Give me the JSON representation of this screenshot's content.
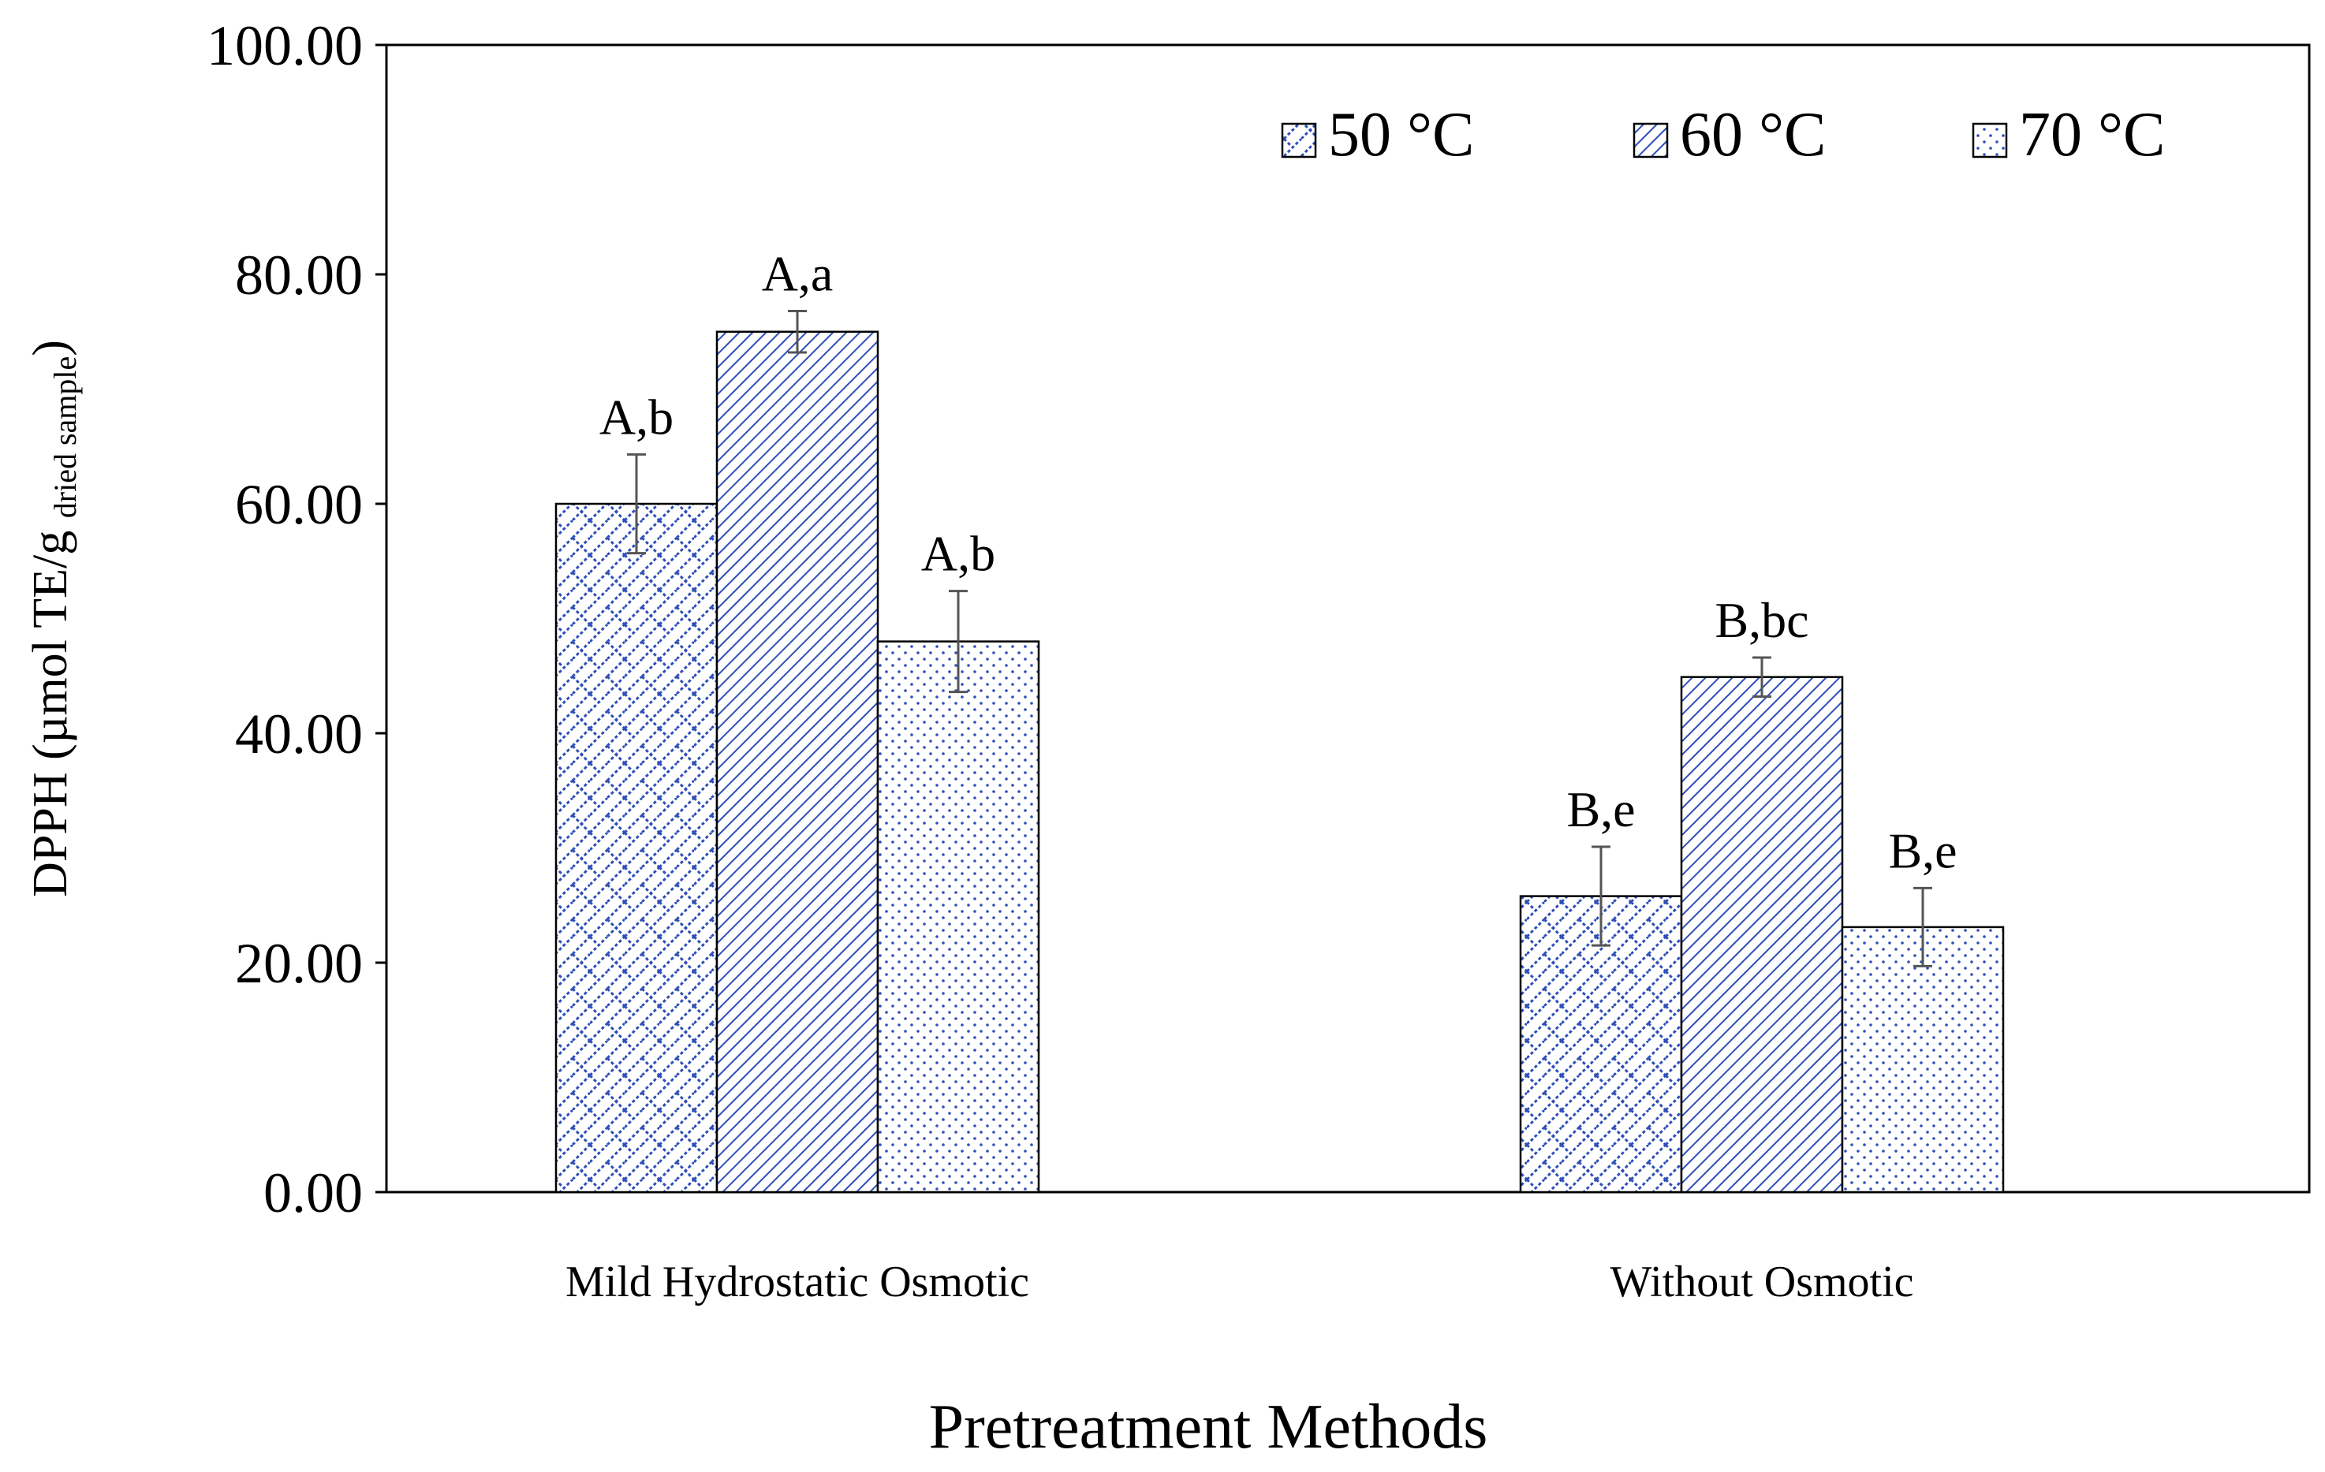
{
  "chart_data": {
    "type": "bar",
    "title": "",
    "xlabel": "Pretreatment  Methods",
    "ylabel": {
      "main": "DPPH (µmol TE/g",
      "subscript": "dried sample",
      "close": ")"
    },
    "ylim": [
      0,
      100
    ],
    "yticks": [
      "0.00",
      "20.00",
      "40.00",
      "60.00",
      "80.00",
      "100.00"
    ],
    "grid": false,
    "legend_position": "top-right",
    "categories": [
      "Mild Hydrostatic Osmotic",
      "Without Osmotic"
    ],
    "series": [
      {
        "name": "50 °C",
        "pattern": "weave",
        "values": [
          60.0,
          25.8
        ],
        "errors": [
          4.3,
          4.3
        ],
        "labels": [
          "A,b",
          "B,e"
        ]
      },
      {
        "name": "60 °C",
        "pattern": "diagonal",
        "values": [
          75.0,
          44.9
        ],
        "errors": [
          1.8,
          1.7
        ],
        "labels": [
          "A,a",
          "B,bc"
        ]
      },
      {
        "name": "70 °C",
        "pattern": "dots",
        "values": [
          48.0,
          23.1
        ],
        "errors": [
          4.4,
          3.4
        ],
        "labels": [
          "A,b",
          "B,e"
        ]
      }
    ],
    "colors": {
      "pattern": "#2E4FB8",
      "bar_fill": "#FFFFFF",
      "axis": "#000000",
      "error_bar": "#555555"
    }
  }
}
